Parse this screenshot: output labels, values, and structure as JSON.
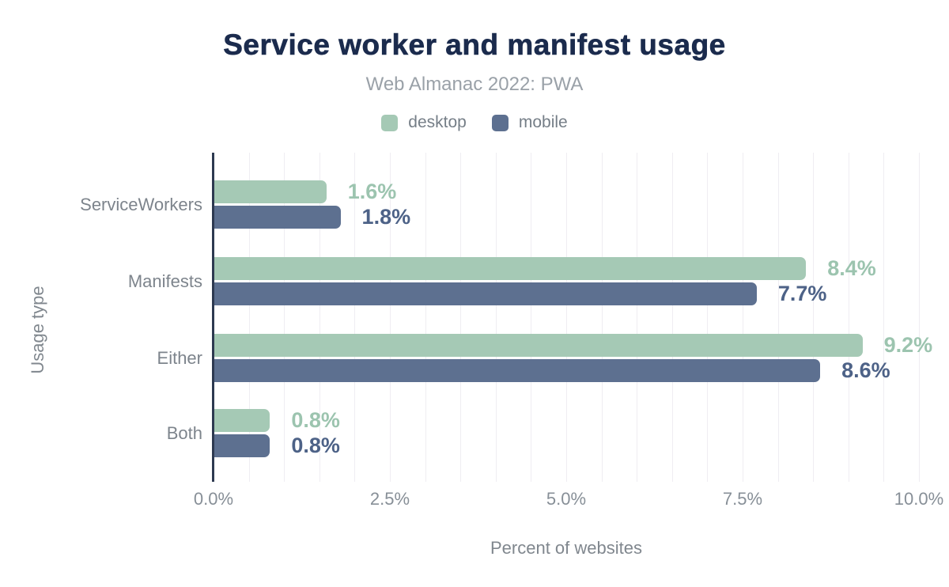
{
  "title": "Service worker and manifest usage",
  "subtitle": "Web Almanac 2022: PWA",
  "legend": {
    "items": [
      {
        "label": "desktop",
        "color": "#a5c9b5"
      },
      {
        "label": "mobile",
        "color": "#5d7090"
      }
    ]
  },
  "colors": {
    "title": "#1b2b4d",
    "subtitle": "#9aa1a8",
    "axis_line": "#2d3950",
    "gridline": "#efedf2",
    "tick_text": "#878f97",
    "category_text": "#7d848c",
    "desktop_bar": "#a5c9b5",
    "desktop_label": "#9cc4af",
    "mobile_bar": "#5d7090",
    "mobile_label": "#4d6287"
  },
  "chart_data": {
    "type": "bar",
    "orientation": "horizontal",
    "title": "Service worker and manifest usage",
    "subtitle": "Web Almanac 2022: PWA",
    "categories": [
      "ServiceWorkers",
      "Manifests",
      "Either",
      "Both"
    ],
    "series": [
      {
        "name": "desktop",
        "color": "#a5c9b5",
        "label_color": "#9cc4af",
        "values": [
          1.6,
          8.4,
          9.2,
          0.8
        ],
        "labels": [
          "1.6%",
          "8.4%",
          "9.2%",
          "0.8%"
        ]
      },
      {
        "name": "mobile",
        "color": "#5d7090",
        "label_color": "#4d6287",
        "values": [
          1.8,
          7.7,
          8.6,
          0.8
        ],
        "labels": [
          "1.8%",
          "7.7%",
          "8.6%",
          "0.8%"
        ]
      }
    ],
    "xlabel": "Percent of websites",
    "ylabel": "Usage type",
    "xlim": [
      0,
      10
    ],
    "x_ticks": [
      "0.0%",
      "2.5%",
      "5.0%",
      "7.5%",
      "10.0%"
    ],
    "x_tick_values": [
      0,
      2.5,
      5,
      7.5,
      10
    ],
    "gridline_step": 0.5,
    "grid": true,
    "legend_position": "top"
  }
}
